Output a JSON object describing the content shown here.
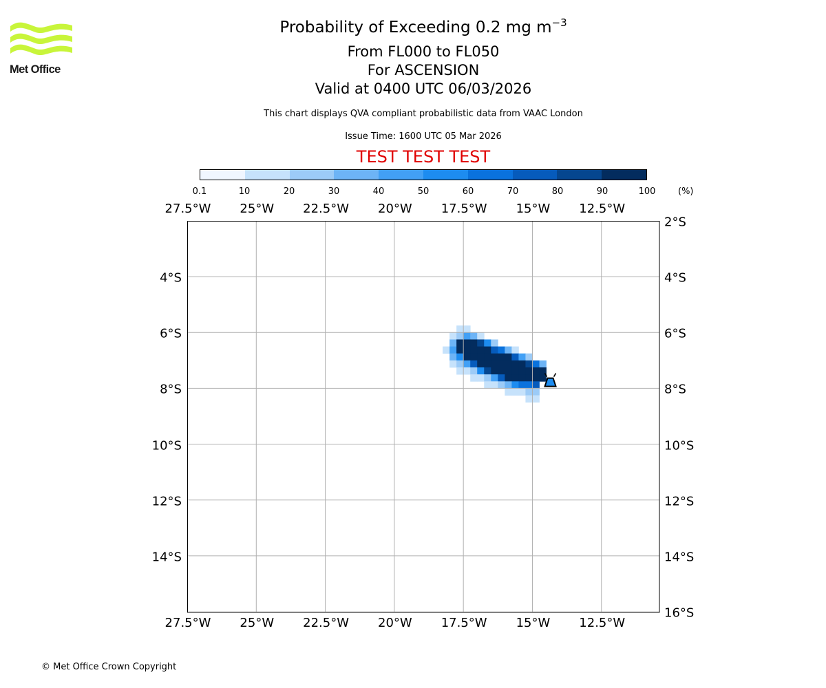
{
  "logo": {
    "text": "Met Office",
    "color": "#c8f53a"
  },
  "title": {
    "line1_prefix": "Probability of Exceeding 0.2 mg m",
    "line1_exponent": "−3",
    "line2": "From FL000 to FL050",
    "line3": "For ASCENSION",
    "line4": "Valid at 0400 UTC 06/03/2026"
  },
  "note": "This chart displays QVA compliant probabilistic data from VAAC London",
  "issue_time": "Issue Time: 1600 UTC 05 Mar 2026",
  "test_banner": "TEST TEST TEST",
  "colorbar": {
    "ticks": [
      "0.1",
      "10",
      "20",
      "30",
      "40",
      "50",
      "60",
      "70",
      "80",
      "90",
      "100"
    ],
    "unit": "(%)",
    "colors": [
      "#f0f6ff",
      "#c6e2fb",
      "#9ccbf7",
      "#6db4f6",
      "#42a0f5",
      "#1d8cf0",
      "#0a72dd",
      "#065bbc",
      "#05468f",
      "#032c5e"
    ]
  },
  "map": {
    "lon_labels": [
      "27.5°W",
      "25°W",
      "22.5°W",
      "20°W",
      "17.5°W",
      "15°W",
      "12.5°W"
    ],
    "lon_values": [
      -27.5,
      -25,
      -22.5,
      -20,
      -17.5,
      -15,
      -12.5
    ],
    "lat_labels_left": [
      "4°S",
      "6°S",
      "8°S",
      "10°S",
      "12°S",
      "14°S"
    ],
    "lat_values_left": [
      -4,
      -6,
      -8,
      -10,
      -12,
      -14
    ],
    "lat_labels_right": [
      "2°S",
      "4°S",
      "6°S",
      "8°S",
      "10°S",
      "12°S",
      "14°S",
      "16°S"
    ],
    "lat_values_right": [
      -2,
      -4,
      -6,
      -8,
      -10,
      -12,
      -14,
      -16
    ],
    "extent": {
      "lon_min": -27.5,
      "lon_max": -10.4,
      "lat_min": -16,
      "lat_max": -2
    },
    "grid_lons": [
      -25,
      -22.5,
      -20,
      -17.5,
      -15,
      -12.5
    ],
    "grid_lats": [
      -4,
      -6,
      -8,
      -10,
      -12,
      -14
    ],
    "volcano": {
      "name": "Ascension",
      "lon": -14.35,
      "lat": -7.93
    },
    "plume_origin": {
      "lon": -18.25,
      "lat": -5.5
    },
    "plume_cell_deg": 0.25,
    "plume_rows": [
      [
        0,
        0,
        0,
        0,
        0,
        0,
        0,
        0,
        0,
        0,
        0,
        0,
        0,
        0,
        0,
        0,
        0
      ],
      [
        0,
        0,
        1,
        1,
        0,
        0,
        0,
        0,
        0,
        0,
        0,
        0,
        0,
        0,
        0,
        0,
        0
      ],
      [
        0,
        1,
        2,
        4,
        3,
        1,
        0,
        0,
        0,
        0,
        0,
        0,
        0,
        0,
        0,
        0,
        0
      ],
      [
        0,
        3,
        9,
        9,
        9,
        8,
        5,
        2,
        0,
        0,
        0,
        0,
        0,
        0,
        0,
        0,
        0
      ],
      [
        1,
        4,
        9,
        9,
        9,
        9,
        9,
        7,
        6,
        3,
        1,
        0,
        0,
        0,
        0,
        0,
        0
      ],
      [
        0,
        3,
        5,
        9,
        9,
        9,
        9,
        9,
        9,
        9,
        7,
        4,
        2,
        0,
        0,
        0,
        0
      ],
      [
        0,
        1,
        2,
        4,
        7,
        9,
        9,
        9,
        9,
        9,
        9,
        9,
        8,
        6,
        3,
        0,
        0
      ],
      [
        0,
        0,
        1,
        1,
        2,
        5,
        8,
        9,
        9,
        9,
        9,
        9,
        9,
        9,
        9,
        0,
        0
      ],
      [
        0,
        0,
        0,
        0,
        1,
        1,
        2,
        4,
        7,
        9,
        9,
        9,
        9,
        9,
        9,
        0,
        0
      ],
      [
        0,
        0,
        0,
        0,
        0,
        0,
        1,
        1,
        2,
        3,
        5,
        6,
        6,
        7,
        0,
        0,
        0
      ],
      [
        0,
        0,
        0,
        0,
        0,
        0,
        0,
        0,
        0,
        1,
        1,
        1,
        2,
        2,
        0,
        0,
        0
      ],
      [
        0,
        0,
        0,
        0,
        0,
        0,
        0,
        0,
        0,
        0,
        0,
        0,
        1,
        1,
        0,
        0,
        0
      ]
    ]
  },
  "copyright": "© Met Office Crown Copyright"
}
